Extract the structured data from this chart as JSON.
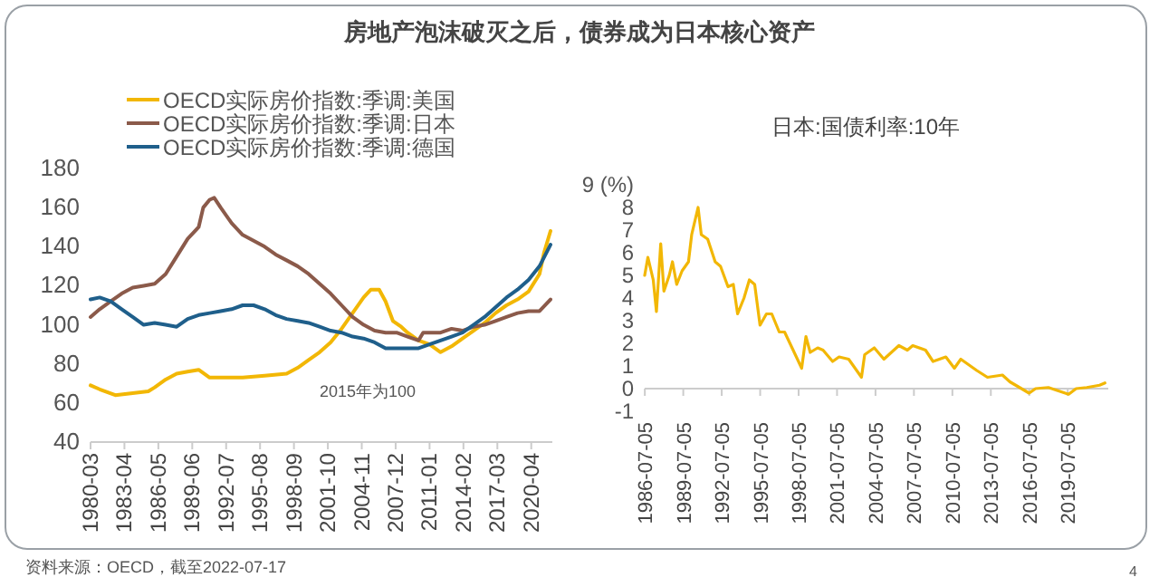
{
  "chart_data": [
    {
      "type": "line",
      "title": "房地产泡沫破灭之后，债券成为日本核心资产",
      "legend": "top",
      "annotations": [
        "2015年为100",
        "资料来源：OECD，截至2022-07-17"
      ],
      "xlim": [
        "1980-03",
        "2022-03"
      ],
      "ylim": [
        40,
        180
      ],
      "yticks": [
        40,
        60,
        80,
        100,
        120,
        140,
        160,
        180
      ],
      "xticks": [
        "1980-03",
        "1983-04",
        "1986-05",
        "1989-06",
        "1992-07",
        "1995-08",
        "1998-09",
        "2001-10",
        "2004-11",
        "2007-12",
        "2011-01",
        "2014-02",
        "2017-03",
        "2020-04"
      ],
      "series": [
        {
          "name": "OECD实际房价指数:季调:美国",
          "color": "#f2b705",
          "x": [
            "1980-03",
            "1981-01",
            "1982-06",
            "1984-01",
            "1985-06",
            "1986-01",
            "1987-01",
            "1988-01",
            "1989-01",
            "1990-01",
            "1991-01",
            "1992-01",
            "1994-01",
            "1996-01",
            "1998-01",
            "1999-01",
            "2000-01",
            "2001-01",
            "2002-01",
            "2003-01",
            "2004-01",
            "2005-01",
            "2005-09",
            "2006-06",
            "2007-01",
            "2007-09",
            "2008-06",
            "2009-01",
            "2010-01",
            "2011-01",
            "2012-01",
            "2013-01",
            "2014-01",
            "2015-01",
            "2016-01",
            "2017-01",
            "2018-01",
            "2019-01",
            "2020-01",
            "2021-01",
            "2021-06",
            "2022-01"
          ],
          "values": [
            69,
            67,
            64,
            65,
            66,
            68,
            72,
            75,
            76,
            77,
            73,
            73,
            73,
            74,
            75,
            78,
            82,
            86,
            91,
            98,
            106,
            114,
            118,
            118,
            112,
            102,
            99,
            96,
            92,
            90,
            86,
            89,
            93,
            97,
            101,
            106,
            110,
            113,
            117,
            126,
            137,
            148
          ]
        },
        {
          "name": "OECD实际房价指数:季调:日本",
          "color": "#8b5a4a",
          "x": [
            "1980-03",
            "1981-01",
            "1982-01",
            "1983-01",
            "1984-01",
            "1985-01",
            "1986-01",
            "1987-01",
            "1988-01",
            "1989-01",
            "1990-01",
            "1990-06",
            "1991-01",
            "1991-06",
            "1992-01",
            "1993-01",
            "1994-01",
            "1995-01",
            "1996-01",
            "1997-01",
            "1998-01",
            "1999-01",
            "2000-01",
            "2001-01",
            "2002-01",
            "2003-01",
            "2004-01",
            "2005-01",
            "2006-01",
            "2007-01",
            "2008-01",
            "2009-01",
            "2010-01",
            "2010-06",
            "2011-01",
            "2012-01",
            "2013-01",
            "2014-01",
            "2015-01",
            "2016-01",
            "2017-01",
            "2018-01",
            "2019-01",
            "2020-01",
            "2021-01",
            "2022-01"
          ],
          "values": [
            104,
            108,
            112,
            116,
            119,
            120,
            121,
            126,
            135,
            144,
            150,
            160,
            164,
            165,
            160,
            152,
            146,
            143,
            140,
            136,
            133,
            130,
            126,
            121,
            116,
            110,
            104,
            100,
            97,
            96,
            96,
            94,
            92,
            96,
            96,
            96,
            98,
            97,
            99,
            100,
            102,
            104,
            106,
            107,
            107,
            113
          ]
        },
        {
          "name": "OECD实际房价指数:季调:德国",
          "color": "#1f5f8b",
          "x": [
            "1980-03",
            "1981-01",
            "1982-01",
            "1983-01",
            "1984-01",
            "1985-01",
            "1986-01",
            "1987-01",
            "1988-01",
            "1989-01",
            "1990-01",
            "1991-01",
            "1992-01",
            "1993-01",
            "1994-01",
            "1995-01",
            "1996-01",
            "1997-01",
            "1998-01",
            "1999-01",
            "2000-01",
            "2001-01",
            "2002-01",
            "2003-01",
            "2004-01",
            "2005-01",
            "2006-01",
            "2007-01",
            "2008-01",
            "2009-01",
            "2010-01",
            "2011-01",
            "2012-01",
            "2013-01",
            "2014-01",
            "2015-01",
            "2016-01",
            "2017-01",
            "2018-01",
            "2019-01",
            "2020-01",
            "2021-01",
            "2022-01"
          ],
          "values": [
            113,
            114,
            112,
            108,
            104,
            100,
            101,
            100,
            99,
            103,
            105,
            106,
            107,
            108,
            110,
            110,
            108,
            105,
            103,
            102,
            101,
            99,
            97,
            96,
            94,
            93,
            91,
            88,
            88,
            88,
            88,
            90,
            92,
            94,
            96,
            100,
            104,
            109,
            114,
            118,
            123,
            130,
            141
          ]
        }
      ]
    },
    {
      "type": "line",
      "title": "日本:国债利率:10年",
      "annotations": [
        "4"
      ],
      "xlim": [
        "1986-07-01",
        "2022-09-05"
      ],
      "ylim": [
        -1,
        9
      ],
      "yticks": [
        -1,
        0,
        1,
        2,
        3,
        4,
        5,
        6,
        7,
        8,
        {
          "value": 9,
          "label": "9 (%)"
        }
      ],
      "xticks": [
        "1986-07-05",
        "1989-07-05",
        "1992-07-05",
        "1995-07-05",
        "1998-07-05",
        "2001-07-05",
        "2004-07-05",
        "2007-07-05",
        "2010-07-05",
        "2013-07-05",
        "2016-07-05",
        "2019-07-05"
      ],
      "series": [
        {
          "color": "#f2b705",
          "x": [
            "1986-07",
            "1986-10",
            "1987-03",
            "1987-06",
            "1987-10",
            "1988-01",
            "1988-06",
            "1988-09",
            "1989-01",
            "1989-06",
            "1989-12",
            "1990-03",
            "1990-09",
            "1990-12",
            "1991-06",
            "1992-01",
            "1992-06",
            "1993-01",
            "1993-06",
            "1993-10",
            "1994-04",
            "1994-09",
            "1995-02",
            "1995-07",
            "1996-01",
            "1996-06",
            "1997-01",
            "1997-06",
            "1998-01",
            "1998-10",
            "1999-02",
            "1999-06",
            "2000-01",
            "2000-06",
            "2001-03",
            "2001-09",
            "2002-06",
            "2003-06",
            "2003-09",
            "2004-06",
            "2005-03",
            "2006-05",
            "2007-01",
            "2007-06",
            "2008-06",
            "2009-01",
            "2010-01",
            "2010-09",
            "2011-03",
            "2012-06",
            "2013-04",
            "2014-06",
            "2015-01",
            "2016-07",
            "2017-01",
            "2018-01",
            "2019-08",
            "2020-03",
            "2021-01",
            "2022-01",
            "2022-06"
          ],
          "values": [
            5.0,
            5.8,
            4.8,
            3.4,
            6.4,
            4.3,
            5.0,
            5.6,
            4.6,
            5.2,
            5.6,
            6.8,
            8.0,
            6.8,
            6.6,
            5.6,
            5.4,
            4.5,
            4.6,
            3.3,
            4.0,
            4.8,
            4.6,
            2.8,
            3.3,
            3.3,
            2.5,
            2.5,
            1.8,
            0.9,
            2.3,
            1.6,
            1.8,
            1.7,
            1.2,
            1.4,
            1.3,
            0.5,
            1.5,
            1.8,
            1.3,
            1.9,
            1.7,
            1.9,
            1.7,
            1.2,
            1.4,
            0.9,
            1.3,
            0.8,
            0.5,
            0.6,
            0.3,
            -0.2,
            0.0,
            0.05,
            -0.25,
            0.0,
            0.05,
            0.15,
            0.25
          ]
        }
      ]
    }
  ]
}
